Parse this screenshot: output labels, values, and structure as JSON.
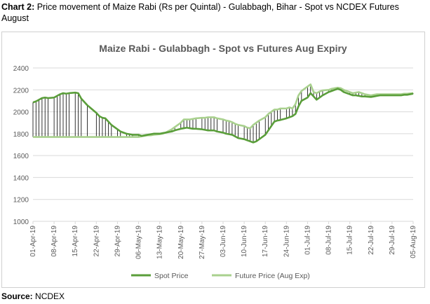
{
  "caption": {
    "label": "Chart 2:",
    "text": " Price movement of Maize Rabi (Rs per Quintal) - Gulabbagh, Bihar - Spot vs NCDEX Futures August"
  },
  "source": {
    "label": "Source:",
    "text": " NCDEX"
  },
  "colors": {
    "spot": "#5a9e3a",
    "future": "#a9d18e",
    "hilo": "#000000",
    "grid": "#d9d9d9",
    "text": "#595959"
  },
  "chart_data": {
    "type": "line",
    "title": "Maize Rabi - Gulabbagh - Spot vs Futures Aug Expiry",
    "xlabel": "",
    "ylabel": "",
    "ylim": [
      1000,
      2400
    ],
    "yticks": [
      1000,
      1200,
      1400,
      1600,
      1800,
      2000,
      2200,
      2400
    ],
    "x_start": "01-Apr-19",
    "x_end": "05-Aug-19",
    "xticks": [
      "01-Apr-19",
      "08-Apr-19",
      "15-Apr-19",
      "22-Apr-19",
      "29-Apr-19",
      "06-May-19",
      "13-May-19",
      "20-May-19",
      "27-May-19",
      "03-Jun-19",
      "10-Jun-19",
      "17-Jun-19",
      "24-Jun-19",
      "01-Jul-19",
      "08-Jul-19",
      "15-Jul-19",
      "22-Jul-19",
      "29-Jul-19",
      "05-Aug-19"
    ],
    "grid": "horizontal",
    "legend_position": "bottom",
    "hi_lo_lines": true,
    "series": [
      {
        "name": "Spot Price",
        "points": [
          [
            "01-Apr-19",
            2085
          ],
          [
            "02-Apr-19",
            2095
          ],
          [
            "03-Apr-19",
            2110
          ],
          [
            "04-Apr-19",
            2125
          ],
          [
            "05-Apr-19",
            2130
          ],
          [
            "06-Apr-19",
            2125
          ],
          [
            "08-Apr-19",
            2130
          ],
          [
            "09-Apr-19",
            2145
          ],
          [
            "10-Apr-19",
            2160
          ],
          [
            "11-Apr-19",
            2170
          ],
          [
            "12-Apr-19",
            2165
          ],
          [
            "13-Apr-19",
            2170
          ],
          [
            "15-Apr-19",
            2175
          ],
          [
            "16-Apr-19",
            2170
          ],
          [
            "17-Apr-19",
            2120
          ],
          [
            "19-Apr-19",
            2060
          ],
          [
            "22-Apr-19",
            1990
          ],
          [
            "23-Apr-19",
            1960
          ],
          [
            "24-Apr-19",
            1945
          ],
          [
            "25-Apr-19",
            1940
          ],
          [
            "26-Apr-19",
            1910
          ],
          [
            "27-Apr-19",
            1880
          ],
          [
            "29-Apr-19",
            1840
          ],
          [
            "30-Apr-19",
            1820
          ],
          [
            "02-May-19",
            1800
          ],
          [
            "03-May-19",
            1795
          ],
          [
            "04-May-19",
            1790
          ],
          [
            "06-May-19",
            1790
          ],
          [
            "07-May-19",
            1780
          ],
          [
            "08-May-19",
            1785
          ],
          [
            "09-May-19",
            1790
          ],
          [
            "10-May-19",
            1795
          ],
          [
            "11-May-19",
            1800
          ],
          [
            "13-May-19",
            1800
          ],
          [
            "14-May-19",
            1805
          ],
          [
            "15-May-19",
            1810
          ],
          [
            "16-May-19",
            1815
          ],
          [
            "17-May-19",
            1820
          ],
          [
            "18-May-19",
            1830
          ],
          [
            "20-May-19",
            1845
          ],
          [
            "21-May-19",
            1850
          ],
          [
            "22-May-19",
            1855
          ],
          [
            "23-May-19",
            1850
          ],
          [
            "24-May-19",
            1845
          ],
          [
            "25-May-19",
            1845
          ],
          [
            "27-May-19",
            1840
          ],
          [
            "28-May-19",
            1835
          ],
          [
            "29-May-19",
            1830
          ],
          [
            "30-May-19",
            1830
          ],
          [
            "31-May-19",
            1830
          ],
          [
            "01-Jun-19",
            1820
          ],
          [
            "03-Jun-19",
            1810
          ],
          [
            "04-Jun-19",
            1800
          ],
          [
            "05-Jun-19",
            1795
          ],
          [
            "06-Jun-19",
            1790
          ],
          [
            "07-Jun-19",
            1775
          ],
          [
            "08-Jun-19",
            1760
          ],
          [
            "10-Jun-19",
            1750
          ],
          [
            "11-Jun-19",
            1740
          ],
          [
            "12-Jun-19",
            1730
          ],
          [
            "13-Jun-19",
            1720
          ],
          [
            "14-Jun-19",
            1730
          ],
          [
            "15-Jun-19",
            1750
          ],
          [
            "17-Jun-19",
            1790
          ],
          [
            "18-Jun-19",
            1830
          ],
          [
            "19-Jun-19",
            1870
          ],
          [
            "20-Jun-19",
            1910
          ],
          [
            "21-Jun-19",
            1920
          ],
          [
            "22-Jun-19",
            1925
          ],
          [
            "24-Jun-19",
            1940
          ],
          [
            "25-Jun-19",
            1950
          ],
          [
            "26-Jun-19",
            1960
          ],
          [
            "27-Jun-19",
            1980
          ],
          [
            "28-Jun-19",
            2050
          ],
          [
            "29-Jun-19",
            2100
          ],
          [
            "01-Jul-19",
            2130
          ],
          [
            "02-Jul-19",
            2170
          ],
          [
            "03-Jul-19",
            2140
          ],
          [
            "04-Jul-19",
            2110
          ],
          [
            "05-Jul-19",
            2130
          ],
          [
            "06-Jul-19",
            2150
          ],
          [
            "08-Jul-19",
            2180
          ],
          [
            "09-Jul-19",
            2190
          ],
          [
            "10-Jul-19",
            2200
          ],
          [
            "11-Jul-19",
            2210
          ],
          [
            "12-Jul-19",
            2200
          ],
          [
            "13-Jul-19",
            2180
          ],
          [
            "15-Jul-19",
            2160
          ],
          [
            "16-Jul-19",
            2150
          ],
          [
            "17-Jul-19",
            2150
          ],
          [
            "18-Jul-19",
            2145
          ],
          [
            "19-Jul-19",
            2140
          ],
          [
            "20-Jul-19",
            2140
          ],
          [
            "22-Jul-19",
            2135
          ],
          [
            "23-Jul-19",
            2140
          ],
          [
            "24-Jul-19",
            2145
          ],
          [
            "25-Jul-19",
            2150
          ],
          [
            "26-Jul-19",
            2150
          ],
          [
            "27-Jul-19",
            2150
          ],
          [
            "29-Jul-19",
            2150
          ],
          [
            "30-Jul-19",
            2150
          ],
          [
            "31-Jul-19",
            2150
          ],
          [
            "01-Aug-19",
            2150
          ],
          [
            "02-Aug-19",
            2155
          ],
          [
            "03-Aug-19",
            2155
          ],
          [
            "05-Aug-19",
            2165
          ]
        ]
      },
      {
        "name": "Future Price (Aug Exp)",
        "points": [
          [
            "01-Apr-19",
            1770
          ],
          [
            "06-May-19",
            1770
          ],
          [
            "07-May-19",
            1775
          ],
          [
            "08-May-19",
            1780
          ],
          [
            "09-May-19",
            1785
          ],
          [
            "10-May-19",
            1785
          ],
          [
            "11-May-19",
            1790
          ],
          [
            "13-May-19",
            1795
          ],
          [
            "14-May-19",
            1800
          ],
          [
            "15-May-19",
            1810
          ],
          [
            "16-May-19",
            1825
          ],
          [
            "17-May-19",
            1840
          ],
          [
            "18-May-19",
            1860
          ],
          [
            "20-May-19",
            1900
          ],
          [
            "21-May-19",
            1930
          ],
          [
            "22-May-19",
            1930
          ],
          [
            "23-May-19",
            1930
          ],
          [
            "24-May-19",
            1935
          ],
          [
            "25-May-19",
            1940
          ],
          [
            "27-May-19",
            1945
          ],
          [
            "28-May-19",
            1945
          ],
          [
            "29-May-19",
            1950
          ],
          [
            "30-May-19",
            1950
          ],
          [
            "31-May-19",
            1950
          ],
          [
            "01-Jun-19",
            1940
          ],
          [
            "03-Jun-19",
            1930
          ],
          [
            "04-Jun-19",
            1920
          ],
          [
            "05-Jun-19",
            1915
          ],
          [
            "06-Jun-19",
            1905
          ],
          [
            "07-Jun-19",
            1890
          ],
          [
            "08-Jun-19",
            1880
          ],
          [
            "10-Jun-19",
            1870
          ],
          [
            "11-Jun-19",
            1855
          ],
          [
            "12-Jun-19",
            1850
          ],
          [
            "13-Jun-19",
            1880
          ],
          [
            "14-Jun-19",
            1900
          ],
          [
            "15-Jun-19",
            1920
          ],
          [
            "17-Jun-19",
            1950
          ],
          [
            "18-Jun-19",
            1980
          ],
          [
            "19-Jun-19",
            2000
          ],
          [
            "20-Jun-19",
            2020
          ],
          [
            "21-Jun-19",
            2020
          ],
          [
            "22-Jun-19",
            2030
          ],
          [
            "24-Jun-19",
            2030
          ],
          [
            "25-Jun-19",
            2040
          ],
          [
            "26-Jun-19",
            2030
          ],
          [
            "27-Jun-19",
            2070
          ],
          [
            "28-Jun-19",
            2150
          ],
          [
            "29-Jun-19",
            2190
          ],
          [
            "01-Jul-19",
            2230
          ],
          [
            "02-Jul-19",
            2250
          ],
          [
            "03-Jul-19",
            2180
          ],
          [
            "04-Jul-19",
            2170
          ],
          [
            "05-Jul-19",
            2185
          ],
          [
            "06-Jul-19",
            2195
          ],
          [
            "08-Jul-19",
            2200
          ],
          [
            "09-Jul-19",
            2210
          ],
          [
            "10-Jul-19",
            2215
          ],
          [
            "11-Jul-19",
            2220
          ],
          [
            "12-Jul-19",
            2215
          ],
          [
            "13-Jul-19",
            2200
          ],
          [
            "15-Jul-19",
            2180
          ],
          [
            "16-Jul-19",
            2170
          ],
          [
            "17-Jul-19",
            2175
          ],
          [
            "18-Jul-19",
            2180
          ],
          [
            "19-Jul-19",
            2170
          ],
          [
            "20-Jul-19",
            2160
          ],
          [
            "22-Jul-19",
            2150
          ],
          [
            "23-Jul-19",
            2155
          ],
          [
            "24-Jul-19",
            2160
          ],
          [
            "25-Jul-19",
            2160
          ],
          [
            "26-Jul-19",
            2160
          ],
          [
            "27-Jul-19",
            2160
          ],
          [
            "29-Jul-19",
            2160
          ],
          [
            "30-Jul-19",
            2160
          ],
          [
            "31-Jul-19",
            2160
          ],
          [
            "01-Aug-19",
            2160
          ],
          [
            "02-Aug-19",
            2165
          ],
          [
            "03-Aug-19",
            2165
          ],
          [
            "05-Aug-19",
            2170
          ]
        ]
      }
    ]
  }
}
